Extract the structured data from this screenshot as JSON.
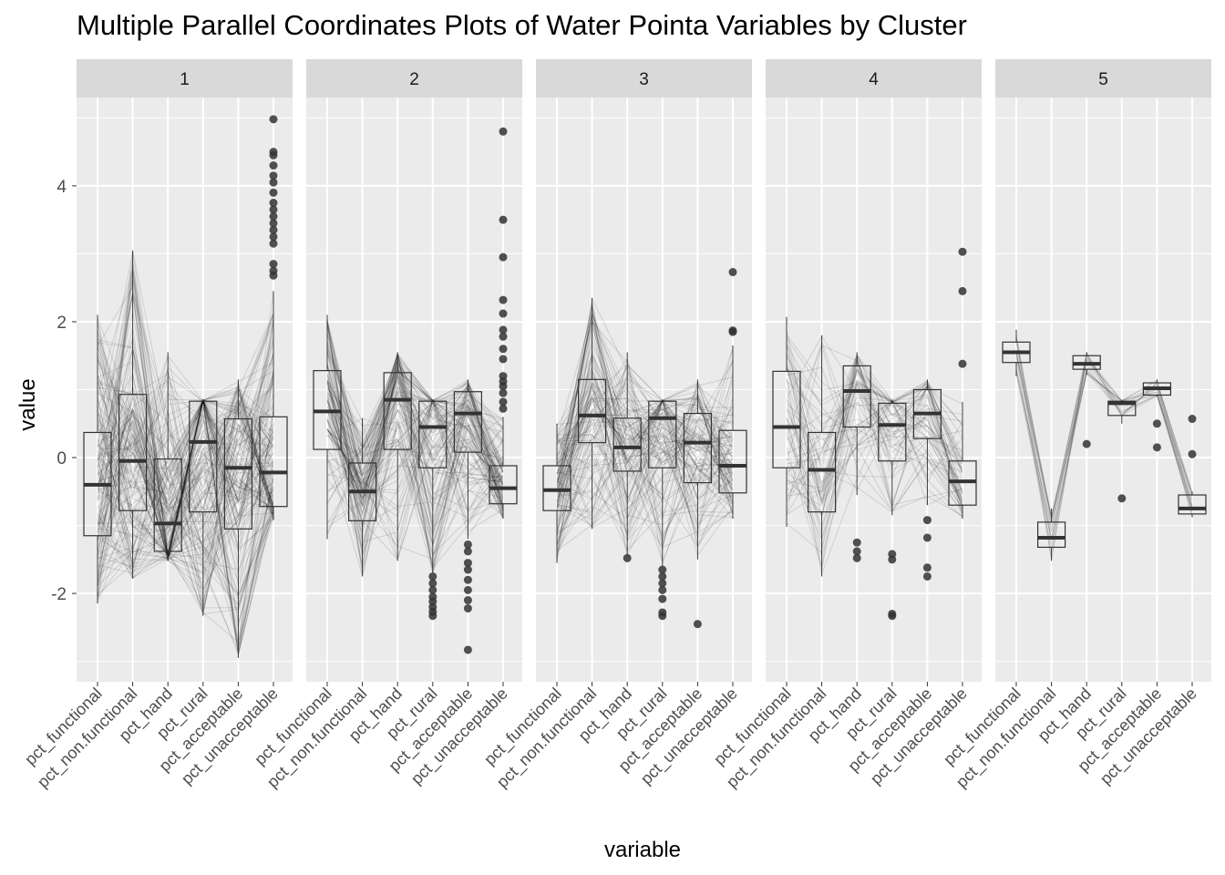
{
  "chart_data": {
    "type": "parallel-coordinates-boxplot",
    "title": "Multiple Parallel Coordinates Plots of Water Pointa Variables by Cluster",
    "xlabel": "variable",
    "ylabel": "value",
    "ylim": [
      -3.3,
      5.3
    ],
    "yticks": [
      -2,
      0,
      2,
      4
    ],
    "grid": true,
    "variables": [
      "pct_functional",
      "pct_non.functional",
      "pct_hand",
      "pct_rural",
      "pct_acceptable",
      "pct_unacceptable"
    ],
    "line_color": "#000000",
    "box_color": "#333333",
    "panel_background": "#EBEBEB",
    "strip_background": "#D9D9D9",
    "panels": [
      {
        "cluster": "1",
        "boxes": [
          {
            "lower": -2.15,
            "q1": -1.15,
            "median": -0.4,
            "q3": 0.37,
            "upper": 2.1,
            "outliers": []
          },
          {
            "lower": -1.78,
            "q1": -0.78,
            "median": -0.05,
            "q3": 0.93,
            "upper": 3.05,
            "outliers": []
          },
          {
            "lower": -1.52,
            "q1": -1.38,
            "median": -0.97,
            "q3": -0.02,
            "upper": 1.55,
            "outliers": []
          },
          {
            "lower": -2.33,
            "q1": -0.8,
            "median": 0.23,
            "q3": 0.83,
            "upper": 0.85,
            "outliers": []
          },
          {
            "lower": -2.95,
            "q1": -1.05,
            "median": -0.15,
            "q3": 0.57,
            "upper": 1.15,
            "outliers": []
          },
          {
            "lower": -0.92,
            "q1": -0.72,
            "median": -0.22,
            "q3": 0.6,
            "upper": 2.45,
            "outliers": [
              2.68,
              2.75,
              2.85,
              3.15,
              3.25,
              3.35,
              3.45,
              3.55,
              3.65,
              3.75,
              3.9,
              4.05,
              4.15,
              4.3,
              4.45,
              4.5,
              4.98
            ]
          }
        ]
      },
      {
        "cluster": "2",
        "boxes": [
          {
            "lower": -1.2,
            "q1": 0.12,
            "median": 0.68,
            "q3": 1.28,
            "upper": 2.1,
            "outliers": []
          },
          {
            "lower": -1.75,
            "q1": -0.93,
            "median": -0.5,
            "q3": -0.08,
            "upper": 0.58,
            "outliers": []
          },
          {
            "lower": -1.52,
            "q1": 0.12,
            "median": 0.85,
            "q3": 1.25,
            "upper": 1.55,
            "outliers": []
          },
          {
            "lower": -1.7,
            "q1": -0.15,
            "median": 0.45,
            "q3": 0.83,
            "upper": 0.85,
            "outliers": [
              -1.75,
              -1.85,
              -1.95,
              -2.05,
              -2.12,
              -2.2,
              -2.27,
              -2.33
            ]
          },
          {
            "lower": -1.2,
            "q1": 0.08,
            "median": 0.65,
            "q3": 0.97,
            "upper": 1.15,
            "outliers": [
              -1.28,
              -1.38,
              -1.55,
              -1.65,
              -1.8,
              -1.95,
              -2.1,
              -2.22,
              -2.83
            ]
          },
          {
            "lower": -0.9,
            "q1": -0.68,
            "median": -0.45,
            "q3": -0.12,
            "upper": 0.6,
            "outliers": [
              0.72,
              0.82,
              0.95,
              1.05,
              1.12,
              1.2,
              1.45,
              1.6,
              1.78,
              1.88,
              2.12,
              2.32,
              2.95,
              3.5,
              4.8
            ]
          }
        ]
      },
      {
        "cluster": "3",
        "boxes": [
          {
            "lower": -1.55,
            "q1": -0.78,
            "median": -0.48,
            "q3": -0.12,
            "upper": 0.5,
            "outliers": []
          },
          {
            "lower": -1.05,
            "q1": 0.22,
            "median": 0.62,
            "q3": 1.15,
            "upper": 2.35,
            "outliers": []
          },
          {
            "lower": -1.45,
            "q1": -0.2,
            "median": 0.15,
            "q3": 0.58,
            "upper": 1.55,
            "outliers": [
              -1.48
            ]
          },
          {
            "lower": -1.6,
            "q1": -0.15,
            "median": 0.58,
            "q3": 0.83,
            "upper": 0.85,
            "outliers": [
              -1.65,
              -1.75,
              -1.85,
              -1.95,
              -2.08,
              -2.28,
              -2.33
            ]
          },
          {
            "lower": -1.5,
            "q1": -0.37,
            "median": 0.22,
            "q3": 0.65,
            "upper": 1.15,
            "outliers": [
              -2.45
            ]
          },
          {
            "lower": -0.9,
            "q1": -0.52,
            "median": -0.12,
            "q3": 0.4,
            "upper": 1.65,
            "outliers": [
              1.85,
              1.87,
              2.73
            ]
          }
        ]
      },
      {
        "cluster": "4",
        "boxes": [
          {
            "lower": -1.02,
            "q1": -0.15,
            "median": 0.45,
            "q3": 1.27,
            "upper": 2.07,
            "outliers": []
          },
          {
            "lower": -1.75,
            "q1": -0.8,
            "median": -0.18,
            "q3": 0.37,
            "upper": 1.8,
            "outliers": []
          },
          {
            "lower": -0.55,
            "q1": 0.45,
            "median": 0.98,
            "q3": 1.35,
            "upper": 1.55,
            "outliers": [
              -1.25,
              -1.38,
              -1.48
            ]
          },
          {
            "lower": -0.85,
            "q1": -0.05,
            "median": 0.48,
            "q3": 0.8,
            "upper": 0.85,
            "outliers": [
              -1.42,
              -1.5,
              -2.3,
              -2.33
            ]
          },
          {
            "lower": -0.7,
            "q1": 0.28,
            "median": 0.65,
            "q3": 1.0,
            "upper": 1.15,
            "outliers": [
              -0.92,
              -1.18,
              -1.62,
              -1.75
            ]
          },
          {
            "lower": -0.9,
            "q1": -0.7,
            "median": -0.35,
            "q3": -0.05,
            "upper": 0.82,
            "outliers": [
              1.38,
              2.45,
              3.03
            ]
          }
        ]
      },
      {
        "cluster": "5",
        "boxes": [
          {
            "lower": 1.2,
            "q1": 1.4,
            "median": 1.55,
            "q3": 1.7,
            "upper": 1.88,
            "outliers": []
          },
          {
            "lower": -1.52,
            "q1": -1.32,
            "median": -1.18,
            "q3": -0.95,
            "upper": -0.75,
            "outliers": []
          },
          {
            "lower": 1.22,
            "q1": 1.3,
            "median": 1.38,
            "q3": 1.5,
            "upper": 1.55,
            "outliers": [
              0.2
            ]
          },
          {
            "lower": 0.5,
            "q1": 0.62,
            "median": 0.8,
            "q3": 0.83,
            "upper": 0.85,
            "outliers": [
              -0.6
            ]
          },
          {
            "lower": 0.9,
            "q1": 0.92,
            "median": 1.02,
            "q3": 1.1,
            "upper": 1.15,
            "outliers": [
              0.5,
              0.15
            ]
          },
          {
            "lower": -0.88,
            "q1": -0.83,
            "median": -0.75,
            "q3": -0.55,
            "upper": -0.5,
            "outliers": [
              0.57,
              0.05
            ]
          }
        ]
      }
    ]
  }
}
